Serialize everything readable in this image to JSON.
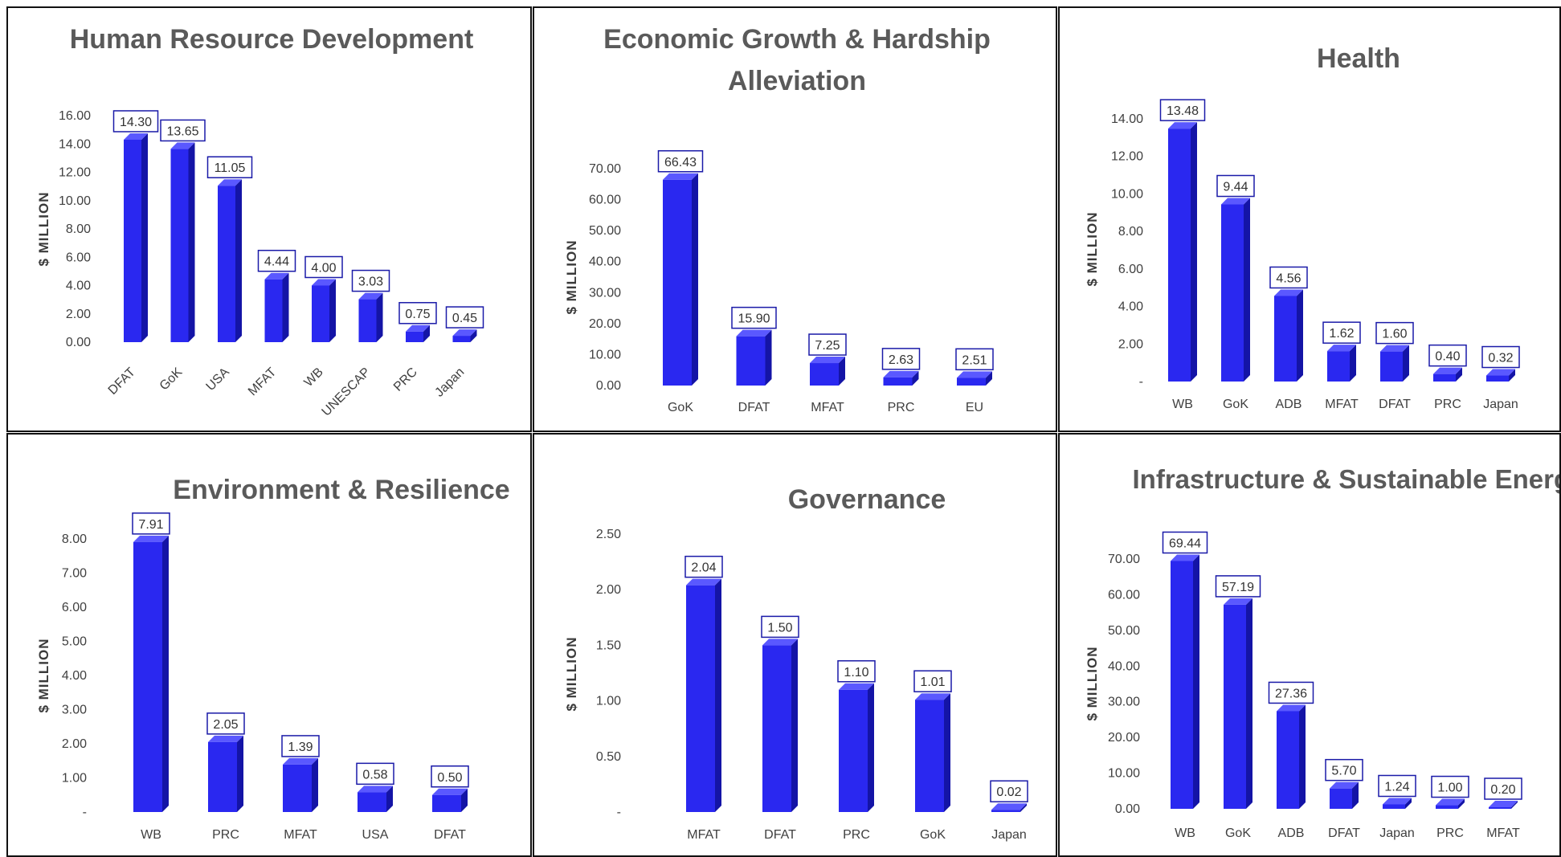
{
  "chart_data": [
    {
      "type": "bar",
      "title": "Human Resource Development",
      "ylabel": "$ MILLION",
      "categories": [
        "DFAT",
        "GoK",
        "USA",
        "MFAT",
        "WB",
        "UNESCAP",
        "PRC",
        "Japan"
      ],
      "values": [
        14.3,
        13.65,
        11.05,
        4.44,
        4.0,
        3.03,
        0.75,
        0.45
      ],
      "data_labels": [
        "14.30",
        "13.65",
        "11.05",
        "4.44",
        "4.00",
        "3.03",
        "0.75",
        "0.45"
      ],
      "yticks": [
        "0.00",
        "2.00",
        "4.00",
        "6.00",
        "8.00",
        "10.00",
        "12.00",
        "14.00",
        "16.00"
      ],
      "ylim": [
        0,
        16
      ],
      "grid": false,
      "rotated_xlabels": true
    },
    {
      "type": "bar",
      "title": "Economic Growth & Hardship Alleviation",
      "ylabel": "$ MILLION",
      "categories": [
        "GoK",
        "DFAT",
        "MFAT",
        "PRC",
        "EU"
      ],
      "values": [
        66.43,
        15.9,
        7.25,
        2.63,
        2.51
      ],
      "data_labels": [
        "66.43",
        "15.90",
        "7.25",
        "2.63",
        "2.51"
      ],
      "yticks": [
        "0.00",
        "10.00",
        "20.00",
        "30.00",
        "40.00",
        "50.00",
        "60.00",
        "70.00"
      ],
      "ylim": [
        0,
        70
      ],
      "grid": false
    },
    {
      "type": "bar",
      "title": "Health",
      "ylabel": "$ MILLION",
      "categories": [
        "WB",
        "GoK",
        "ADB",
        "MFAT",
        "DFAT",
        "PRC",
        "Japan"
      ],
      "values": [
        13.48,
        9.44,
        4.56,
        1.62,
        1.6,
        0.4,
        0.32
      ],
      "data_labels": [
        "13.48",
        "9.44",
        "4.56",
        "1.62",
        "1.60",
        "0.40",
        "0.32"
      ],
      "yticks": [
        "-",
        "2.00",
        "4.00",
        "6.00",
        "8.00",
        "10.00",
        "12.00",
        "14.00"
      ],
      "ylim": [
        0,
        14
      ],
      "grid": false
    },
    {
      "type": "bar",
      "title": "Environment & Resilience",
      "ylabel": "$ MILLION",
      "categories": [
        "WB",
        "PRC",
        "MFAT",
        "USA",
        "DFAT"
      ],
      "values": [
        7.91,
        2.05,
        1.39,
        0.58,
        0.5
      ],
      "data_labels": [
        "7.91",
        "2.05",
        "1.39",
        "0.58",
        "0.50"
      ],
      "yticks": [
        "-",
        "1.00",
        "2.00",
        "3.00",
        "4.00",
        "5.00",
        "6.00",
        "7.00",
        "8.00"
      ],
      "ylim": [
        0,
        8
      ],
      "grid": false
    },
    {
      "type": "bar",
      "title": "Governance",
      "ylabel": "$ MILLION",
      "categories": [
        "MFAT",
        "DFAT",
        "PRC",
        "GoK",
        "Japan"
      ],
      "values": [
        2.04,
        1.5,
        1.1,
        1.01,
        0.02
      ],
      "data_labels": [
        "2.04",
        "1.50",
        "1.10",
        "1.01",
        "0.02"
      ],
      "yticks": [
        "-",
        "0.50",
        "1.00",
        "1.50",
        "2.00",
        "2.50"
      ],
      "ylim": [
        0,
        2.5
      ],
      "grid": false
    },
    {
      "type": "bar",
      "title": "Infrastructure & Sustainable Energy",
      "ylabel": "$ MILLION",
      "categories": [
        "WB",
        "GoK",
        "ADB",
        "DFAT",
        "Japan",
        "PRC",
        "MFAT"
      ],
      "values": [
        69.44,
        57.19,
        27.36,
        5.7,
        1.24,
        1.0,
        0.2
      ],
      "data_labels": [
        "69.44",
        "57.19",
        "27.36",
        "5.70",
        "1.24",
        "1.00",
        "0.20"
      ],
      "yticks": [
        "0.00",
        "10.00",
        "20.00",
        "30.00",
        "40.00",
        "50.00",
        "60.00",
        "70.00"
      ],
      "ylim": [
        0,
        70
      ],
      "grid": false
    }
  ],
  "colors": {
    "bar_front": "#2a28f0",
    "bar_side": "#1414a6",
    "bar_top": "#5a58ff",
    "label_border": "#1a1aa8",
    "title_text": "#5a5a5a",
    "panel_border": "#111111"
  }
}
